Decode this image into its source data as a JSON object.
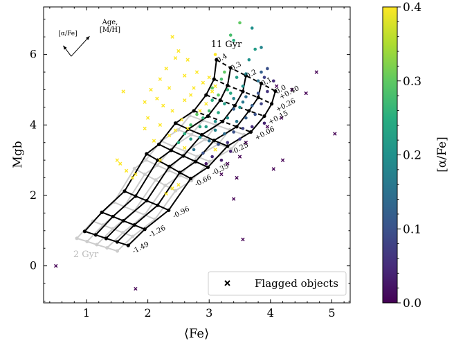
{
  "chart_data": [
    {
      "type": "scatter",
      "xlabel": "⟨Fe⟩",
      "ylabel": "Mgb",
      "xlim": [
        0.3,
        5.3
      ],
      "ylim": [
        -1.05,
        7.35
      ],
      "x_ticks": [
        1,
        2,
        3,
        4,
        5
      ],
      "x_tick_labels": [
        "1",
        "2",
        "3",
        "4",
        "5"
      ],
      "y_ticks": [
        0,
        2,
        4,
        6
      ],
      "y_tick_labels": [
        "0",
        "2",
        "4",
        "6"
      ],
      "grid": false,
      "legend": {
        "position": "lower-right",
        "entries": [
          {
            "label": "Flagged objects",
            "marker": "x"
          }
        ]
      },
      "colorbar": {
        "label": "[α/Fe]",
        "min": 0.0,
        "max": 0.4,
        "ticks": [
          0.0,
          0.1,
          0.2,
          0.3,
          0.4
        ],
        "tick_labels": [
          "0.0",
          "0.1",
          "0.2",
          "0.3",
          "0.4"
        ],
        "colormap": "viridis"
      },
      "annotations": {
        "age_label": "Age,",
        "mh_label": "[M/H]",
        "alpha_label": "[α/Fe]",
        "old_age": "11 Gyr",
        "young_age": "2 Gyr"
      },
      "metallicity_labels": [
        "-1.49",
        "-1.26",
        "-0.96",
        "-0.66",
        "-0.35",
        "-0.25",
        "+0.06",
        "+0.15",
        "+0.26",
        "+0.40"
      ],
      "alpha_grid_labels": [
        "0.4",
        "0.3",
        "0.2",
        "0.1",
        "0.0"
      ],
      "model_grid_11gyr": {
        "alpha_values": [
          0.4,
          0.3,
          0.2,
          0.1,
          0.0
        ],
        "metallicities": [
          "-1.49",
          "-1.26",
          "-0.96",
          "-0.66",
          "-0.35",
          "-0.25",
          "+0.06",
          "+0.15",
          "+0.26",
          "+0.40"
        ],
        "fe": [
          [
            0.97,
            1.25,
            1.62,
            1.98,
            2.18,
            2.45,
            2.75,
            2.95,
            3.08,
            3.12
          ],
          [
            1.15,
            1.43,
            1.8,
            2.16,
            2.38,
            2.66,
            2.98,
            3.18,
            3.3,
            3.35
          ],
          [
            1.32,
            1.6,
            1.98,
            2.35,
            2.58,
            2.88,
            3.22,
            3.42,
            3.55,
            3.6
          ],
          [
            1.5,
            1.78,
            2.16,
            2.52,
            2.78,
            3.08,
            3.45,
            3.65,
            3.8,
            3.85
          ],
          [
            1.68,
            1.95,
            2.34,
            2.7,
            2.98,
            3.3,
            3.68,
            3.9,
            4.02,
            4.08
          ]
        ],
        "mgb": [
          [
            0.98,
            1.52,
            2.12,
            3.18,
            3.45,
            4.05,
            4.4,
            4.85,
            5.3,
            5.85
          ],
          [
            0.88,
            1.4,
            1.98,
            3.0,
            3.28,
            3.88,
            4.25,
            4.7,
            5.12,
            5.62
          ],
          [
            0.78,
            1.28,
            1.85,
            2.82,
            3.12,
            3.72,
            4.1,
            4.55,
            4.95,
            5.4
          ],
          [
            0.68,
            1.16,
            1.72,
            2.65,
            2.96,
            3.56,
            3.95,
            4.4,
            4.78,
            5.18
          ],
          [
            0.58,
            1.04,
            1.58,
            2.48,
            2.8,
            3.4,
            3.8,
            4.25,
            4.6,
            4.96
          ]
        ]
      },
      "arrows": [
        {
          "from": [
            0.75,
            5.95
          ],
          "to": [
            0.62,
            6.25
          ]
        },
        {
          "from": [
            0.75,
            5.95
          ],
          "to": [
            1.05,
            6.52
          ]
        }
      ],
      "series": [
        {
          "name": "Flagged objects",
          "marker": "x",
          "points": [
            [
              0.5,
              0.0
            ],
            [
              1.8,
              -0.65
            ],
            [
              5.05,
              3.75
            ],
            [
              4.75,
              5.5
            ],
            [
              4.58,
              4.9
            ],
            [
              4.35,
              5.0
            ],
            [
              4.1,
              5.1
            ],
            [
              4.18,
              4.2
            ],
            [
              4.2,
              3.0
            ],
            [
              4.05,
              2.75
            ],
            [
              3.95,
              3.95
            ],
            [
              3.6,
              3.5
            ],
            [
              3.5,
              3.1
            ],
            [
              3.45,
              2.5
            ],
            [
              3.3,
              2.9
            ],
            [
              3.4,
              1.9
            ],
            [
              3.55,
              0.75
            ],
            [
              3.2,
              2.6
            ],
            [
              3.1,
              3.3
            ],
            [
              1.55,
              2.9
            ],
            [
              1.65,
              2.7
            ],
            [
              1.5,
              3.0
            ],
            [
              1.6,
              4.95
            ],
            [
              1.8,
              2.6
            ],
            [
              1.75,
              2.5
            ],
            [
              2.4,
              6.5
            ],
            [
              2.5,
              6.1
            ],
            [
              2.45,
              5.9
            ],
            [
              2.3,
              5.6
            ],
            [
              2.65,
              5.85
            ],
            [
              2.6,
              5.4
            ],
            [
              2.2,
              5.3
            ],
            [
              2.35,
              5.05
            ],
            [
              2.05,
              5.0
            ],
            [
              1.95,
              4.65
            ],
            [
              2.15,
              4.75
            ],
            [
              2.25,
              4.55
            ],
            [
              2.4,
              4.4
            ],
            [
              2.6,
              4.7
            ],
            [
              2.7,
              4.85
            ],
            [
              2.9,
              5.2
            ],
            [
              2.8,
              5.5
            ],
            [
              2.75,
              5.05
            ],
            [
              3.0,
              5.35
            ],
            [
              3.1,
              5.1
            ],
            [
              2.45,
              3.85
            ],
            [
              2.55,
              4.15
            ],
            [
              2.35,
              3.7
            ],
            [
              2.2,
              4.0
            ],
            [
              2.0,
              4.2
            ],
            [
              2.1,
              3.55
            ],
            [
              1.95,
              3.9
            ],
            [
              2.6,
              3.35
            ],
            [
              2.5,
              2.3
            ],
            [
              2.4,
              2.2
            ],
            [
              2.3,
              2.05
            ],
            [
              2.2,
              3.0
            ],
            [
              2.65,
              3.9
            ],
            [
              2.85,
              4.4
            ],
            [
              2.95,
              4.6
            ],
            [
              3.05,
              4.95
            ]
          ]
        },
        {
          "name": "",
          "marker": "o",
          "points": [
            [
              3.1,
              6.0,
              0.42
            ],
            [
              3.35,
              6.55,
              0.28
            ],
            [
              3.4,
              6.4,
              0.25
            ],
            [
              3.5,
              6.9,
              0.3
            ],
            [
              3.7,
              6.75,
              0.2
            ],
            [
              3.75,
              6.15,
              0.22
            ],
            [
              3.85,
              6.2,
              0.18
            ],
            [
              3.65,
              5.85,
              0.2
            ],
            [
              3.85,
              5.5,
              0.12
            ],
            [
              3.9,
              5.35,
              0.08
            ],
            [
              3.95,
              5.6,
              0.1
            ],
            [
              3.8,
              5.25,
              0.15
            ],
            [
              3.55,
              5.1,
              0.2
            ],
            [
              3.45,
              5.35,
              0.22
            ],
            [
              3.25,
              5.5,
              0.3
            ],
            [
              3.2,
              5.3,
              0.28
            ],
            [
              3.3,
              5.0,
              0.26
            ],
            [
              3.15,
              4.85,
              0.3
            ],
            [
              3.05,
              4.7,
              0.25
            ],
            [
              3.25,
              4.6,
              0.22
            ],
            [
              3.4,
              4.75,
              0.18
            ],
            [
              3.5,
              4.5,
              0.2
            ],
            [
              3.6,
              4.8,
              0.14
            ],
            [
              3.7,
              4.55,
              0.12
            ],
            [
              3.85,
              4.6,
              0.08
            ],
            [
              3.75,
              4.3,
              0.1
            ],
            [
              3.6,
              4.2,
              0.12
            ],
            [
              3.45,
              4.1,
              0.16
            ],
            [
              3.3,
              4.2,
              0.2
            ],
            [
              3.15,
              4.35,
              0.24
            ],
            [
              3.0,
              4.4,
              0.28
            ],
            [
              2.9,
              4.2,
              0.26
            ],
            [
              2.8,
              4.3,
              0.3
            ],
            [
              2.7,
              4.0,
              0.28
            ],
            [
              2.95,
              3.95,
              0.22
            ],
            [
              3.1,
              3.85,
              0.18
            ],
            [
              3.25,
              3.75,
              0.14
            ],
            [
              3.4,
              3.8,
              0.1
            ],
            [
              3.55,
              3.9,
              0.08
            ],
            [
              3.7,
              3.95,
              0.05
            ],
            [
              3.9,
              4.05,
              0.04
            ],
            [
              3.3,
              3.5,
              0.06
            ],
            [
              3.15,
              3.45,
              0.1
            ],
            [
              3.0,
              3.55,
              0.15
            ],
            [
              2.85,
              3.65,
              0.2
            ],
            [
              2.7,
              3.6,
              0.22
            ],
            [
              2.6,
              3.75,
              0.25
            ],
            [
              2.5,
              3.5,
              0.25
            ],
            [
              2.75,
              3.3,
              0.15
            ],
            [
              2.9,
              3.2,
              0.1
            ],
            [
              3.05,
              3.1,
              0.05
            ],
            [
              3.2,
              3.0,
              0.03
            ],
            [
              2.95,
              2.9,
              0.02
            ],
            [
              3.4,
              4.45,
              0.12
            ],
            [
              3.55,
              4.65,
              0.16
            ],
            [
              3.35,
              4.9,
              0.24
            ],
            [
              3.05,
              5.05,
              0.3
            ],
            [
              3.6,
              5.45,
              0.18
            ],
            [
              3.95,
              4.95,
              0.06
            ],
            [
              4.05,
              5.25,
              0.05
            ],
            [
              3.8,
              4.9,
              0.1
            ],
            [
              3.35,
              3.25,
              0.04
            ],
            [
              3.5,
              3.6,
              0.07
            ],
            [
              3.1,
              4.1,
              0.2
            ],
            [
              2.85,
              3.95,
              0.24
            ]
          ]
        }
      ]
    }
  ]
}
